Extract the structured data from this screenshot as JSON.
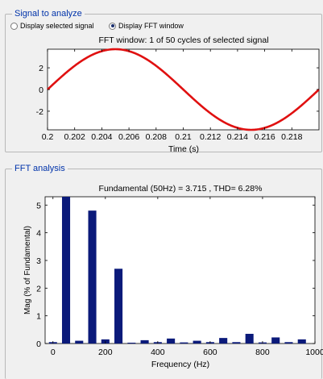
{
  "signal_panel": {
    "legend": "Signal to analyze",
    "radio_selected": "Display selected signal",
    "radio_fft": "Display FFT window",
    "radio_fft_checked": true
  },
  "fft_panel": {
    "legend": "FFT analysis"
  },
  "colors": {
    "waveform": "#e01010",
    "bars": "#0b1a7a",
    "legend": "#0033aa"
  },
  "chart_data": [
    {
      "type": "line",
      "title": "FFT window: 1 of 50 cycles of selected signal",
      "xlabel": "Time (s)",
      "ylabel": "",
      "xlim": [
        0.2,
        0.22
      ],
      "ylim": [
        -3.715,
        3.715
      ],
      "xticks": [
        0.2,
        0.202,
        0.204,
        0.206,
        0.208,
        0.21,
        0.212,
        0.214,
        0.216,
        0.218
      ],
      "xtick_labels": [
        "0.2",
        "0.202",
        "0.204",
        "0.206",
        "0.208",
        "0.21",
        "0.212",
        "0.214",
        "0.216",
        "0.218"
      ],
      "yticks": [
        -2,
        0,
        2
      ],
      "ytick_labels": [
        "-2",
        "0",
        "2"
      ],
      "series": [
        {
          "amplitude": 3.715,
          "frequency_hz": 50,
          "t_start": 0.2,
          "t_end": 0.22
        }
      ],
      "grid": false
    },
    {
      "type": "bar",
      "title": "Fundamental (50Hz) = 3.715 , THD= 6.28%",
      "xlabel": "Frequency (Hz)",
      "ylabel": "Mag (% of Fundamental)",
      "xlim": [
        -30,
        1000
      ],
      "ylim": [
        0,
        5.3
      ],
      "xticks": [
        0,
        200,
        400,
        600,
        800,
        1000
      ],
      "xtick_labels": [
        "0",
        "200",
        "400",
        "600",
        "800",
        "1000"
      ],
      "yticks": [
        0,
        1,
        2,
        3,
        4,
        5
      ],
      "ytick_labels": [
        "0",
        "1",
        "2",
        "3",
        "4",
        "5"
      ],
      "x": [
        0,
        50,
        100,
        150,
        200,
        250,
        300,
        350,
        400,
        450,
        500,
        550,
        600,
        650,
        700,
        750,
        800,
        850,
        900,
        950
      ],
      "values": [
        0.05,
        5.3,
        0.1,
        4.8,
        0.15,
        2.7,
        0.03,
        0.12,
        0.05,
        0.18,
        0.04,
        0.1,
        0.05,
        0.2,
        0.05,
        0.35,
        0.04,
        0.22,
        0.05,
        0.15
      ],
      "grid": false
    }
  ]
}
